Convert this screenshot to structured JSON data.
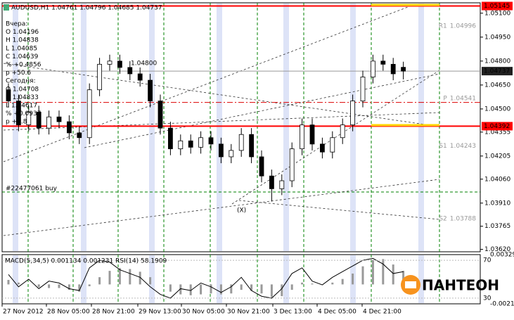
{
  "chart_data": {
    "type": "candlestick",
    "title": "AUDUSD,H1  1.04761 1.04796 1.04685 1.04737",
    "info_lines": [
      "Вчера:",
      "O 1.04196",
      "H 1.04838",
      "L 1.04085",
      "C 1.04639",
      "% +0.4856",
      "p +50.6",
      "Сегодня:",
      "O 1.04708",
      "H 1.04833",
      "L 1.04617",
      "% +0.0937",
      "p +3.8"
    ],
    "order_label": "#22477061 buy",
    "marker_label": "(X)",
    "level_note": "1.04800",
    "categories": [
      "27 Nov 2012",
      "28 Nov 05:00",
      "28 Nov 21:00",
      "29 Nov 13:00",
      "30 Nov 05:00",
      "30 Nov 21:00",
      "3 Dec 13:00",
      "4 Dec 05:00",
      "4 Dec 21:00"
    ],
    "open": [
      1.0462,
      1.0455,
      1.044,
      1.0448,
      1.0438,
      1.0445,
      1.0442,
      1.0435,
      1.0432,
      1.0462,
      1.0478,
      1.048,
      1.0476,
      1.0472,
      1.0468,
      1.0455,
      1.0438,
      1.0425,
      1.043,
      1.0426,
      1.0432,
      1.0428,
      1.042,
      1.0424,
      1.0434,
      1.042,
      1.0408,
      1.04,
      1.0405,
      1.0425,
      1.044,
      1.0428,
      1.0423,
      1.0432,
      1.044,
      1.0455,
      1.047,
      1.048,
      1.0478,
      1.04761
    ],
    "high": [
      1.0466,
      1.0459,
      1.0452,
      1.0452,
      1.0449,
      1.0449,
      1.0446,
      1.0439,
      1.0466,
      1.0482,
      1.0484,
      1.0484,
      1.048,
      1.0476,
      1.0472,
      1.0459,
      1.0442,
      1.0434,
      1.0434,
      1.0436,
      1.0436,
      1.0432,
      1.0428,
      1.0438,
      1.0438,
      1.0424,
      1.0412,
      1.0409,
      1.0429,
      1.0444,
      1.0444,
      1.0432,
      1.0436,
      1.0444,
      1.0459,
      1.0474,
      1.0484,
      1.0484,
      1.0482,
      1.04796
    ],
    "low": [
      1.0451,
      1.0436,
      1.0436,
      1.0434,
      1.0434,
      1.0438,
      1.0431,
      1.0428,
      1.0428,
      1.0458,
      1.0474,
      1.0472,
      1.0468,
      1.0464,
      1.0451,
      1.0434,
      1.0421,
      1.0421,
      1.0422,
      1.0422,
      1.0424,
      1.0416,
      1.0416,
      1.042,
      1.0416,
      1.0404,
      1.0392,
      1.0396,
      1.0401,
      1.0421,
      1.0424,
      1.0419,
      1.0419,
      1.0428,
      1.0436,
      1.0451,
      1.0466,
      1.0474,
      1.0468,
      1.04685
    ],
    "close": [
      1.0455,
      1.044,
      1.0448,
      1.0438,
      1.0445,
      1.0442,
      1.0435,
      1.0432,
      1.0462,
      1.0478,
      1.048,
      1.0476,
      1.0472,
      1.0468,
      1.0455,
      1.0438,
      1.0425,
      1.043,
      1.0426,
      1.0432,
      1.0428,
      1.042,
      1.0424,
      1.0434,
      1.042,
      1.0408,
      1.04,
      1.0405,
      1.0425,
      1.044,
      1.0428,
      1.0423,
      1.0432,
      1.044,
      1.0455,
      1.047,
      1.048,
      1.0478,
      1.0472,
      1.04737
    ],
    "ylim": [
      1.03605,
      1.05165
    ],
    "yticks": [
      {
        "value": 1.051,
        "label": "1.05100"
      },
      {
        "value": 1.0495,
        "label": "1.04950"
      },
      {
        "value": 1.048,
        "label": "1.04800"
      },
      {
        "value": 1.0465,
        "label": "1.04650"
      },
      {
        "value": 1.045,
        "label": "1.04500"
      },
      {
        "value": 1.04355,
        "label": "1.04355"
      },
      {
        "value": 1.04205,
        "label": "1.04205"
      },
      {
        "value": 1.0406,
        "label": "1.04060"
      },
      {
        "value": 1.0391,
        "label": "1.03910"
      },
      {
        "value": 1.03765,
        "label": "1.03765"
      },
      {
        "value": 1.0362,
        "label": "1.03620"
      }
    ],
    "price_labels": [
      {
        "value": 1.05145,
        "color": "#ff0000"
      },
      {
        "value": 1.04737,
        "color": "#202020"
      },
      {
        "value": 1.04392,
        "color": "#ff0000"
      }
    ],
    "pivots": [
      {
        "name": "R1",
        "value": 1.04996
      },
      {
        "name": "P",
        "value": 1.04541
      },
      {
        "name": "S1",
        "value": 1.04243
      },
      {
        "name": "S2",
        "value": 1.03788
      }
    ],
    "indicator_label": "MACD(5,34,5) 0.001134 0.001231  RSI(14) 58.1909",
    "rsi": [
      55,
      42,
      50,
      40,
      48,
      46,
      40,
      38,
      62,
      70,
      68,
      60,
      56,
      52,
      42,
      34,
      30,
      40,
      38,
      46,
      42,
      36,
      42,
      52,
      38,
      32,
      30,
      40,
      56,
      62,
      48,
      44,
      52,
      58,
      64,
      70,
      72,
      66,
      56,
      58
    ],
    "rsi_ylim": [
      24,
      76
    ],
    "rsi_ticks": [
      70,
      30
    ],
    "macd": [
      0.0005,
      0.0002,
      0,
      -0.0003,
      -0.0004,
      -0.0004,
      -0.0006,
      -0.0008,
      -0.0002,
      0.0008,
      0.0015,
      0.0018,
      0.0017,
      0.0014,
      0.0008,
      0,
      -0.0008,
      -0.0011,
      -0.0012,
      -0.0011,
      -0.001,
      -0.0011,
      -0.001,
      -0.0006,
      -0.0007,
      -0.001,
      -0.0014,
      -0.0013,
      -0.0006,
      0.0002,
      0.0001,
      0,
      0.0002,
      0.0006,
      0.0012,
      0.002,
      0.0027,
      0.0028,
      0.0022,
      0.0015
    ],
    "macd_ylim": [
      -0.002145,
      0.003295
    ],
    "macd_ticks": [
      0.003295,
      -0.002145
    ],
    "logo": "ПАНТЕОН"
  }
}
